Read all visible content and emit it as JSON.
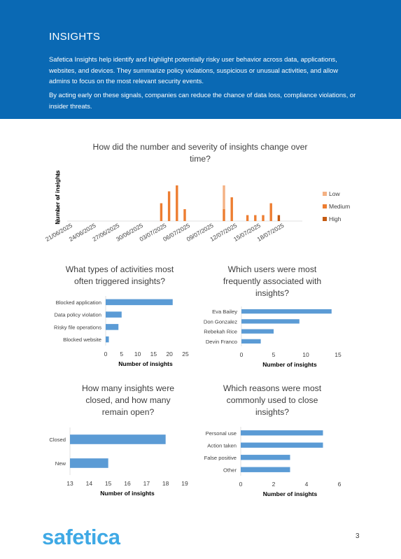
{
  "header": {
    "title": "INSIGHTS",
    "p1": "Safetica Insights help identify and highlight potentially risky user behavior across data, applications, websites, and devices. They summarize policy violations, suspicious or unusual activities, and allow admins to focus on the most relevant security events.",
    "p2": "By acting early on these signals, companies can reduce the chance of data loss, compliance violations, or insider threats."
  },
  "footer": {
    "logo": "safetica",
    "page": "3"
  },
  "colors": {
    "header_bg": "#0a69b4",
    "bar_blue": "#5b9bd5",
    "low": "#f4b183",
    "medium": "#ed7d31",
    "high": "#c55a11",
    "logo": "#3fa9e5"
  },
  "chart_data": [
    {
      "id": "timeline",
      "type": "bar",
      "title": "How did the number and severity of insights change over time?",
      "title_lines": [
        "How did the number and severity of insights change over",
        "time?"
      ],
      "ylabel": "Number of insights",
      "xlabel": "",
      "ylim": [
        0,
        8
      ],
      "yticks": [
        0,
        2,
        4,
        6,
        8
      ],
      "tick_labels": [
        "21/06/2025",
        "24/06/2025",
        "27/06/2025",
        "30/06/2025",
        "03/07/2025",
        "06/07/2025",
        "09/07/2025",
        "12/07/2025",
        "15/07/2025",
        "18/07/2025"
      ],
      "dates": [
        "03/07/2025",
        "04/07/2025",
        "05/07/2025",
        "06/07/2025",
        "11/07/2025",
        "12/07/2025",
        "14/07/2025",
        "15/07/2025",
        "16/07/2025",
        "17/07/2025",
        "18/07/2025"
      ],
      "series": [
        {
          "name": "Low",
          "color": "#f4b183",
          "values": [
            0,
            0,
            0,
            0,
            4,
            0,
            0,
            0,
            0,
            0,
            0
          ]
        },
        {
          "name": "Medium",
          "color": "#ed7d31",
          "values": [
            3,
            5,
            6,
            2,
            2,
            4,
            1,
            1,
            1,
            3,
            0
          ]
        },
        {
          "name": "High",
          "color": "#c55a11",
          "values": [
            0,
            0,
            0,
            0,
            0,
            0,
            0,
            0,
            0,
            0,
            1
          ]
        }
      ],
      "legend": "right",
      "grid": false
    },
    {
      "id": "activities",
      "type": "bar",
      "orientation": "horizontal",
      "title": "What types of activities most often triggered insights?",
      "title_lines": [
        "What types of activities most",
        "often triggered insights?"
      ],
      "xlabel": "Number of insights",
      "categories": [
        "Blocked application",
        "Data policy violation",
        "Risky file operations",
        "Blocked website"
      ],
      "values": [
        21,
        5,
        4,
        1
      ],
      "xlim": [
        0,
        25
      ],
      "xticks": [
        0,
        5,
        10,
        15,
        20,
        25
      ],
      "color": "#5b9bd5"
    },
    {
      "id": "users",
      "type": "bar",
      "orientation": "horizontal",
      "title": "Which users were most frequently associated with insights?",
      "title_lines": [
        "Which users were most",
        "frequently associated with",
        "insights?"
      ],
      "xlabel": "Number of insights",
      "categories": [
        "Eva Bailey",
        "Don Gonzalez",
        "Rebekah Rice",
        "Devin Franco"
      ],
      "values": [
        14,
        9,
        5,
        3
      ],
      "xlim": [
        0,
        15
      ],
      "xticks": [
        0,
        5,
        10,
        15
      ],
      "color": "#5b9bd5"
    },
    {
      "id": "closed",
      "type": "bar",
      "orientation": "horizontal",
      "title": "How many insights were closed, and how many remain open?",
      "title_lines": [
        "How many insights were",
        "closed, and how many",
        "remain open?"
      ],
      "xlabel": "Number of insights",
      "categories": [
        "Closed",
        "New"
      ],
      "values": [
        18,
        15
      ],
      "xlim": [
        13,
        19
      ],
      "xticks": [
        13,
        14,
        15,
        16,
        17,
        18,
        19
      ],
      "color": "#5b9bd5"
    },
    {
      "id": "reasons",
      "type": "bar",
      "orientation": "horizontal",
      "title": "Which reasons were most commonly used to close insights?",
      "title_lines": [
        "Which reasons were most",
        "commonly used to close",
        "insights?"
      ],
      "xlabel": "Number of insights",
      "categories": [
        "Personal use",
        "Action taken",
        "False positive",
        "Other"
      ],
      "values": [
        5,
        5,
        3,
        3
      ],
      "xlim": [
        0,
        6
      ],
      "xticks": [
        0,
        2,
        4,
        6
      ],
      "color": "#5b9bd5"
    }
  ]
}
